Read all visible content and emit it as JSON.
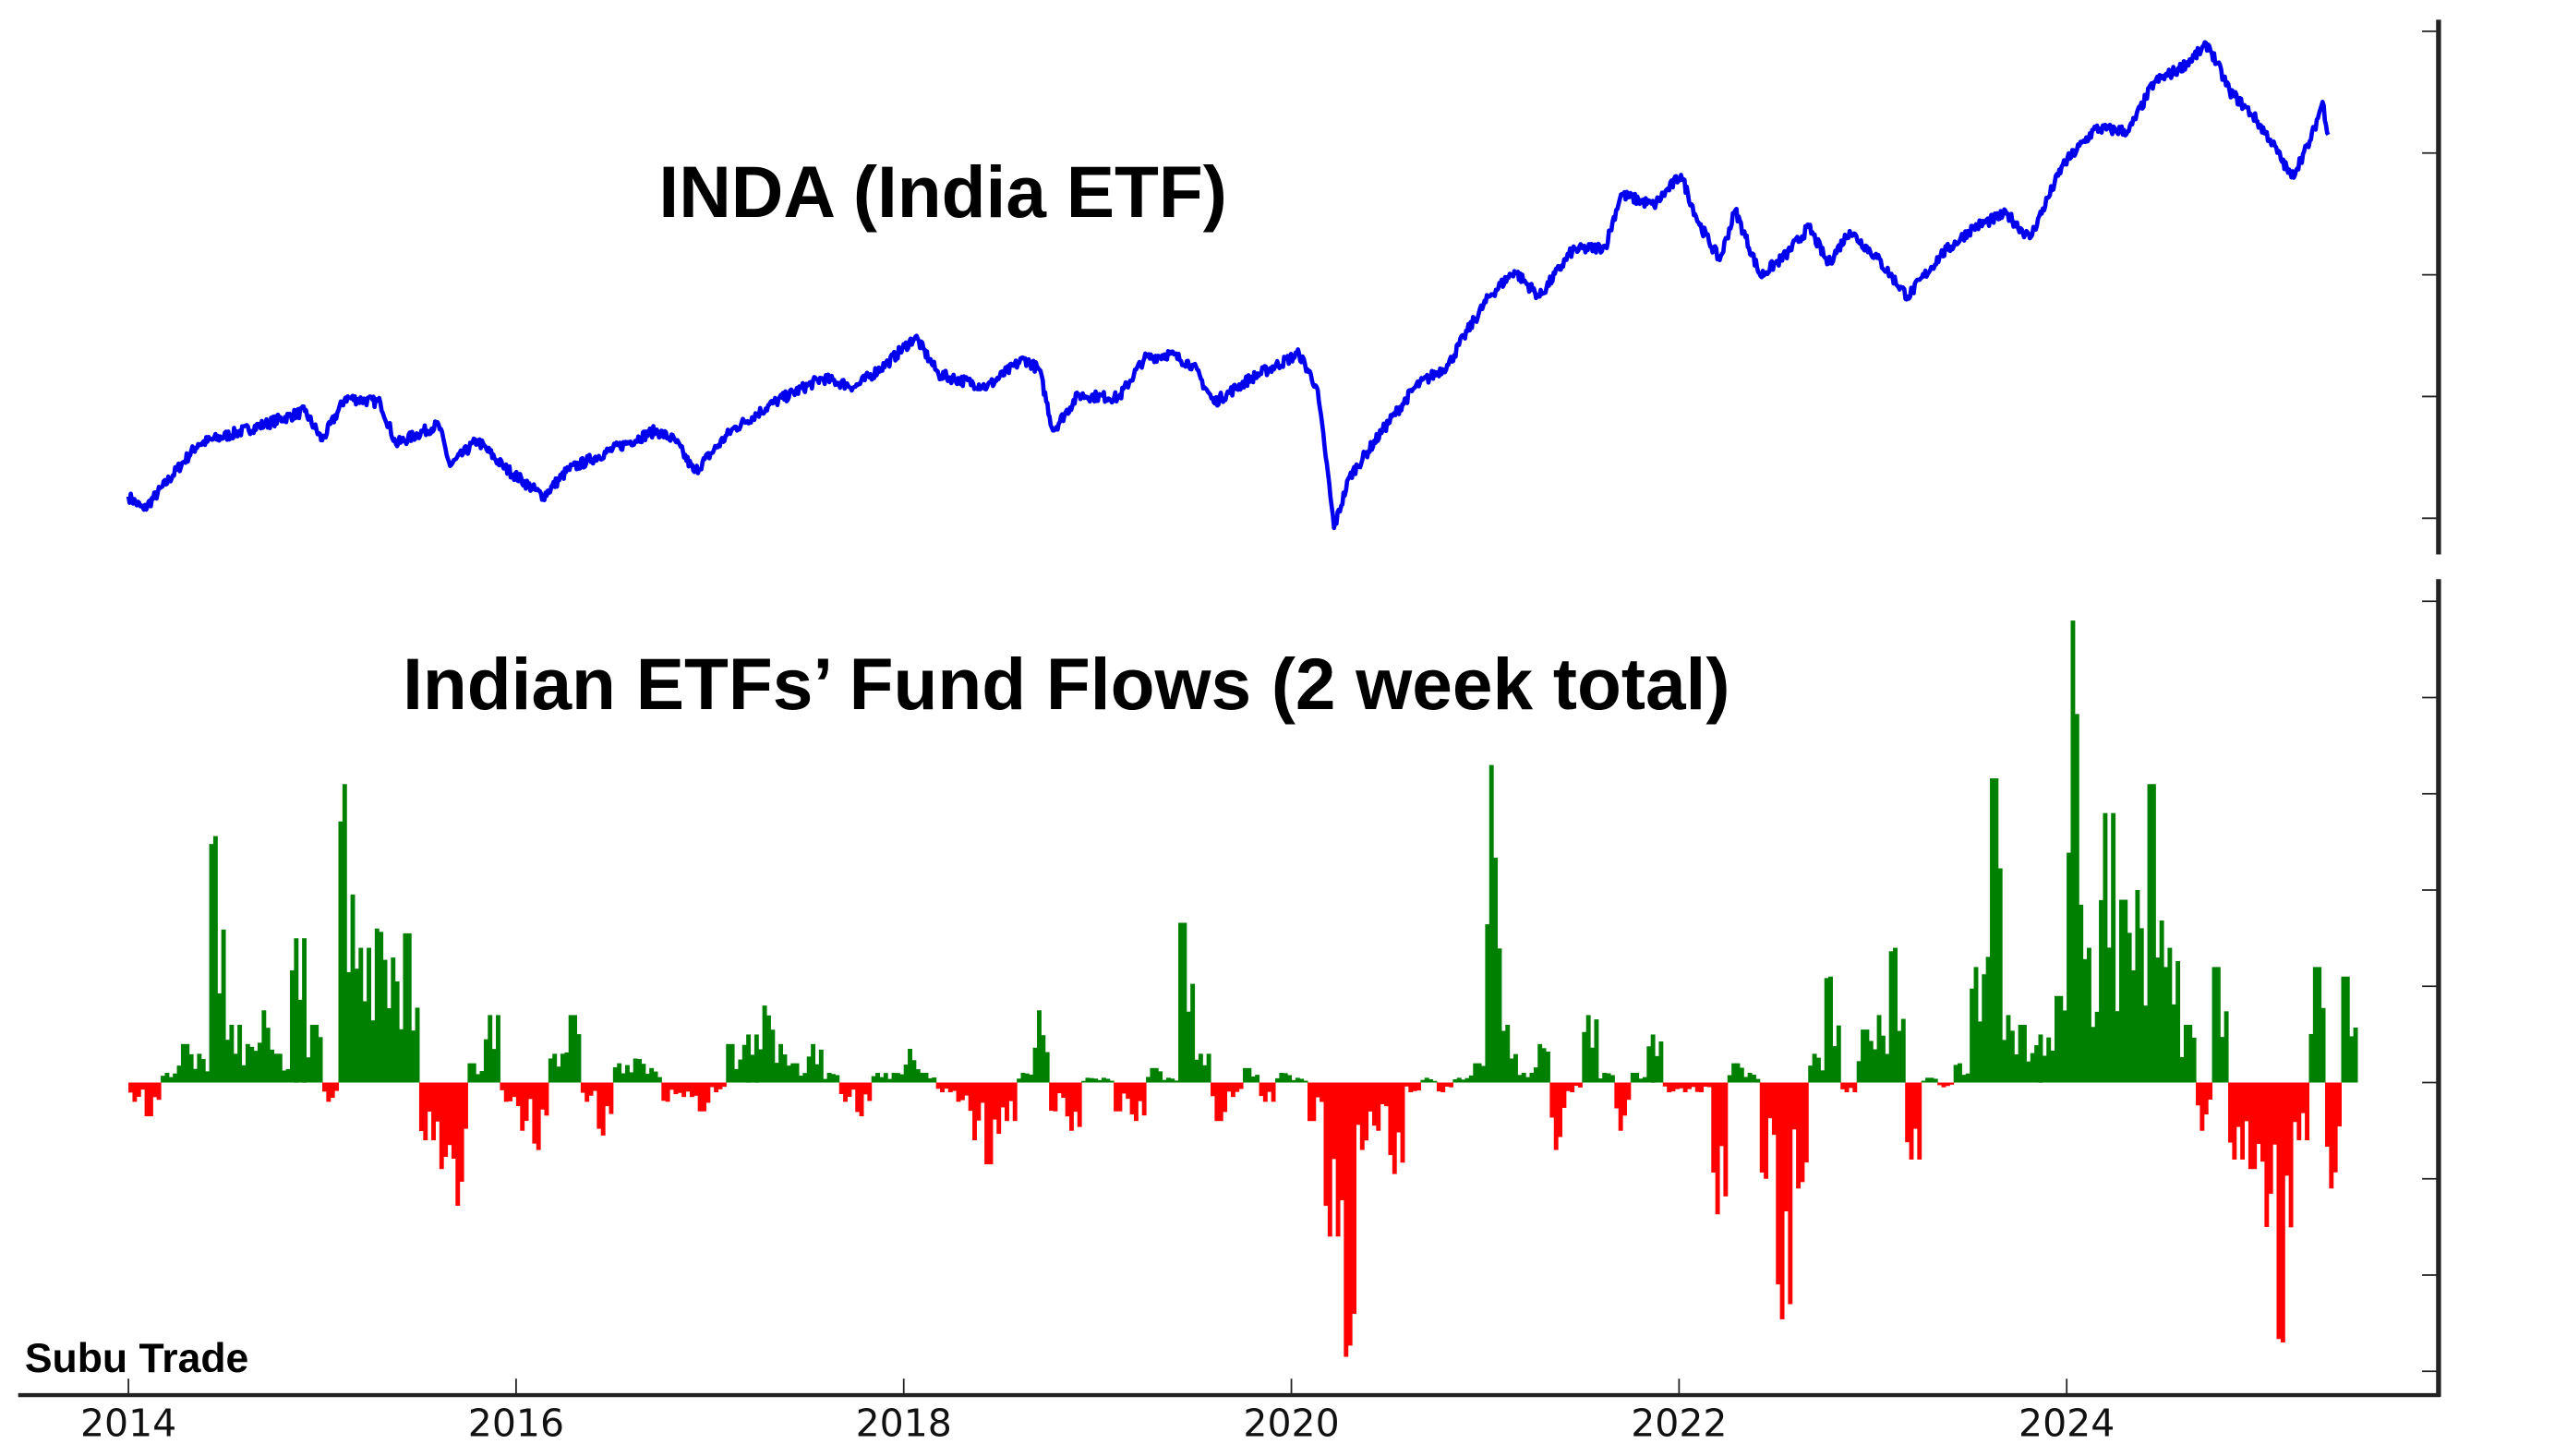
{
  "chart_data": [
    {
      "type": "line",
      "title": "INDA (India ETF)",
      "color": "#0000ee",
      "xlim": [
        2013.9,
        2026.1
      ],
      "ylim": [
        19,
        61
      ],
      "y_ticks": [
        20,
        30,
        40,
        50,
        60
      ],
      "y_tick_labels_visible": false,
      "points": [
        [
          2014.0,
          21.8
        ],
        [
          2014.08,
          20.7
        ],
        [
          2014.36,
          26.1
        ],
        [
          2014.7,
          27.7
        ],
        [
          2014.91,
          28.8
        ],
        [
          2015.0,
          26.4
        ],
        [
          2015.12,
          29.9
        ],
        [
          2015.3,
          29.5
        ],
        [
          2015.38,
          26.1
        ],
        [
          2015.6,
          27.7
        ],
        [
          2015.66,
          24.3
        ],
        [
          2015.8,
          26.4
        ],
        [
          2015.93,
          24.3
        ],
        [
          2016.14,
          21.8
        ],
        [
          2016.27,
          24.0
        ],
        [
          2016.56,
          26.1
        ],
        [
          2016.72,
          27.2
        ],
        [
          2016.82,
          26.4
        ],
        [
          2016.92,
          23.8
        ],
        [
          2017.11,
          27.2
        ],
        [
          2017.33,
          29.5
        ],
        [
          2017.58,
          31.5
        ],
        [
          2017.75,
          30.8
        ],
        [
          2017.92,
          32.8
        ],
        [
          2018.06,
          34.9
        ],
        [
          2018.18,
          31.8
        ],
        [
          2018.43,
          30.8
        ],
        [
          2018.62,
          33.1
        ],
        [
          2018.7,
          32.2
        ],
        [
          2018.77,
          27.2
        ],
        [
          2018.9,
          30.1
        ],
        [
          2019.11,
          29.9
        ],
        [
          2019.24,
          33.1
        ],
        [
          2019.37,
          33.5
        ],
        [
          2019.49,
          32.6
        ],
        [
          2019.6,
          29.5
        ],
        [
          2019.79,
          31.5
        ],
        [
          2020.04,
          33.5
        ],
        [
          2020.13,
          30.8
        ],
        [
          2020.17,
          26.1
        ],
        [
          2020.22,
          19.2
        ],
        [
          2020.3,
          23.4
        ],
        [
          2020.47,
          27.2
        ],
        [
          2020.64,
          30.8
        ],
        [
          2020.81,
          32.6
        ],
        [
          2020.89,
          34.9
        ],
        [
          2021.02,
          38.2
        ],
        [
          2021.15,
          40.3
        ],
        [
          2021.28,
          38.2
        ],
        [
          2021.45,
          42.0
        ],
        [
          2021.62,
          42.3
        ],
        [
          2021.7,
          46.6
        ],
        [
          2021.87,
          45.7
        ],
        [
          2022.01,
          48.2
        ],
        [
          2022.1,
          44.3
        ],
        [
          2022.21,
          41.2
        ],
        [
          2022.29,
          45.3
        ],
        [
          2022.42,
          39.9
        ],
        [
          2022.55,
          41.6
        ],
        [
          2022.67,
          43.9
        ],
        [
          2022.77,
          40.9
        ],
        [
          2022.88,
          43.6
        ],
        [
          2023.01,
          41.6
        ],
        [
          2023.18,
          38.2
        ],
        [
          2023.35,
          41.6
        ],
        [
          2023.52,
          43.9
        ],
        [
          2023.69,
          45.0
        ],
        [
          2023.81,
          43.0
        ],
        [
          2023.98,
          49.0
        ],
        [
          2024.15,
          52.0
        ],
        [
          2024.32,
          51.8
        ],
        [
          2024.45,
          55.8
        ],
        [
          2024.58,
          56.9
        ],
        [
          2024.73,
          58.9
        ],
        [
          2024.84,
          55.1
        ],
        [
          2024.96,
          53.1
        ],
        [
          2025.05,
          51.1
        ],
        [
          2025.16,
          48.0
        ],
        [
          2025.26,
          51.1
        ],
        [
          2025.32,
          54.2
        ],
        [
          2025.35,
          51.5
        ]
      ]
    },
    {
      "type": "bar",
      "title": "Indian ETFs’ Fund Flows (2 week total)",
      "positive_color": "#008000",
      "negative_color": "#ff0000",
      "x_start": 2014.0,
      "x_step_years": 0.08333,
      "ylim": [
        -3.2,
        5.0
      ],
      "y_ticks": [
        -3,
        -2,
        -1,
        0,
        1,
        2,
        3,
        4,
        5
      ],
      "y_tick_labels_visible": false,
      "values": [
        -0.2,
        -0.35,
        0.1,
        0.4,
        0.3,
        2.56,
        0.6,
        0.4,
        0.75,
        0.3,
        1.5,
        0.6,
        -0.2,
        3.1,
        1.4,
        1.6,
        1.3,
        1.55,
        -0.6,
        -0.9,
        -1.28,
        0.2,
        0.7,
        -0.2,
        -0.5,
        -0.7,
        0.3,
        0.7,
        -0.2,
        -0.55,
        0.2,
        0.25,
        0.15,
        -0.2,
        -0.15,
        -0.3,
        -0.1,
        0.4,
        0.5,
        0.8,
        0.4,
        0.2,
        0.4,
        0.1,
        -0.2,
        -0.35,
        0.1,
        0.1,
        0.35,
        0.1,
        -0.1,
        -0.2,
        -0.6,
        -0.85,
        -0.4,
        0.1,
        0.75,
        -0.3,
        -0.5,
        0.05,
        0.05,
        -0.3,
        -0.4,
        0.15,
        0.05,
        1.66,
        0.3,
        -0.4,
        -0.15,
        0.15,
        -0.2,
        0.1,
        0.05,
        -0.4,
        -1.6,
        -2.85,
        -0.7,
        -0.5,
        -0.95,
        -0.1,
        0.05,
        -0.1,
        0.05,
        0.2,
        3.3,
        0.6,
        0.1,
        0.4,
        -0.7,
        -0.1,
        0.7,
        0.1,
        -0.5,
        0.1,
        0.5,
        -0.1,
        -0.1,
        -0.1,
        -1.37,
        0.2,
        0.1,
        -1.0,
        -2.46,
        -1.1,
        0.3,
        1.1,
        -0.1,
        0.55,
        0.7,
        1.4,
        -0.8,
        0.05,
        -0.05,
        0.2,
        1.2,
        3.16,
        0.7,
        0.6,
        0.5,
        0.9,
        4.8,
        1.4,
        2.8,
        1.9,
        2.0,
        3.1,
        1.4,
        0.6,
        -0.5,
        1.2,
        -0.8,
        -0.9,
        -1.5,
        -2.7,
        -0.6,
        1.2,
        -1.1,
        1.1
      ]
    }
  ],
  "x_axis": {
    "ticks": [
      2014,
      2016,
      2018,
      2020,
      2022,
      2024
    ],
    "labels": [
      "2014",
      "2016",
      "2018",
      "2020",
      "2022",
      "2024"
    ]
  },
  "watermark": "Subu Trade"
}
